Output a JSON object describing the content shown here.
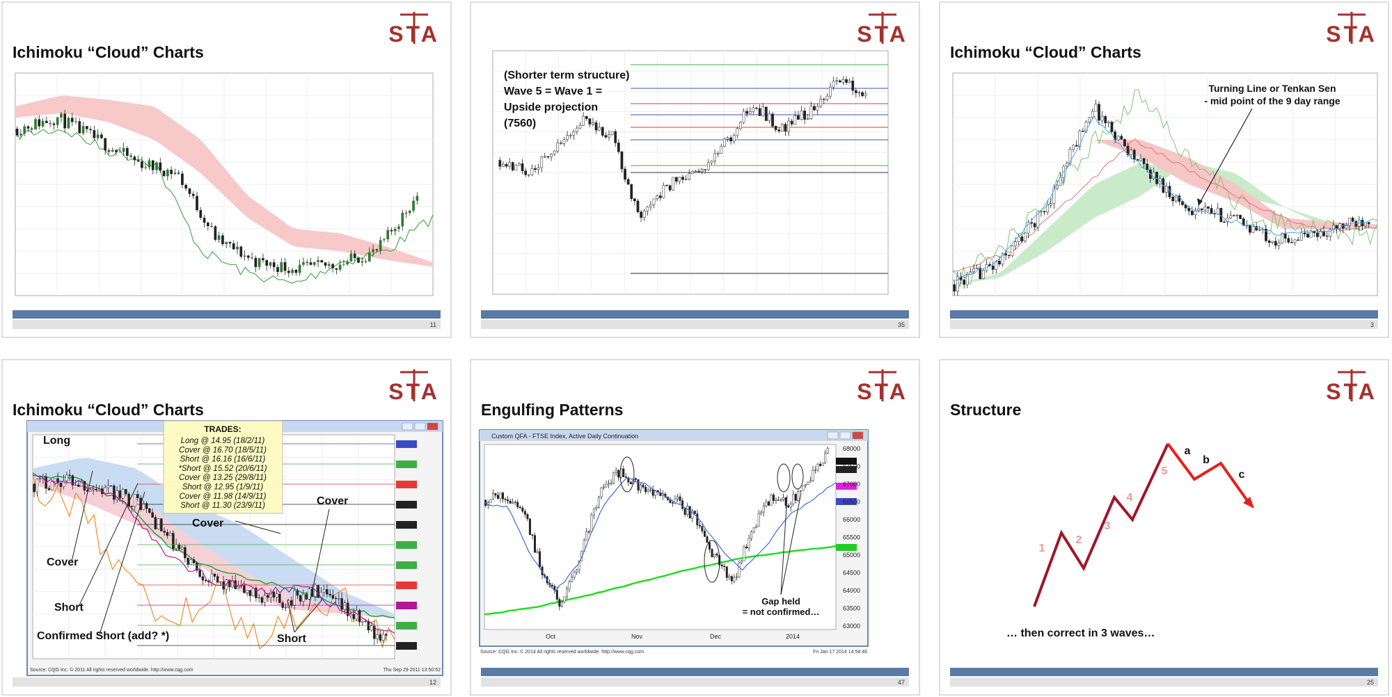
{
  "logo": "STA",
  "slides": [
    {
      "title": "Ichimoku “Cloud” Charts",
      "page": "11"
    },
    {
      "annotation": [
        "(Shorter term structure)",
        "Wave 5 = Wave 1 =",
        "Upside projection",
        "(7560)"
      ],
      "page": "35"
    },
    {
      "title": "Ichimoku “Cloud” Charts",
      "annotation": [
        "Turning Line or Tenkan Sen",
        "- mid point of the 9 day range"
      ],
      "page": "3"
    },
    {
      "title": "Ichimoku “Cloud” Charts",
      "trades_header": "TRADES:",
      "trades": [
        "Long @ 14.95 (18/2/11)",
        "Cover @ 16.70 (18/5/11)",
        "Short @ 16.16 (16/6/11)",
        "*Short @ 15.52 (20/6/11)",
        "Cover @ 13.25 (29/8/11)",
        "Short @ 12.95 (1/9/11)",
        "Cover @ 11.98 (14/9/11)",
        "Short @ 11.30 (23/9/11)"
      ],
      "annotations": [
        "Long",
        "Cover",
        "Short",
        "Confirmed Short (add? *)",
        "Cover",
        "Cover",
        "Short"
      ],
      "source": "Source: CQG Inc. © 2011 All rights reserved worldwide. http://www.cqg.com",
      "timestamp": "Thu Sep 29 2011 13:50:52",
      "page": "12"
    },
    {
      "title": "Engulfing Patterns",
      "window_title": "Custom QFA - FTSE Index, Active Daily Continuation",
      "yticks": [
        "68000",
        "67500",
        "67000",
        "66500",
        "66000",
        "65500",
        "65000",
        "64500",
        "64000",
        "63500",
        "63000"
      ],
      "xticks": [
        "Oct",
        "Nov",
        "Dec",
        "2014"
      ],
      "annotation": [
        "Gap held",
        "= not confirmed…"
      ],
      "source": "Source: CQG Inc. © 2014 All rights reserved worldwide. http://www.cqg.com",
      "timestamp": "Fri Jan 17 2014 14:58:46",
      "page": "47"
    },
    {
      "title": "Structure",
      "wave_labels": [
        "1",
        "2",
        "3",
        "4",
        "5",
        "a",
        "b",
        "c"
      ],
      "caption": "… then correct in 3 waves…",
      "page": "25"
    }
  ]
}
